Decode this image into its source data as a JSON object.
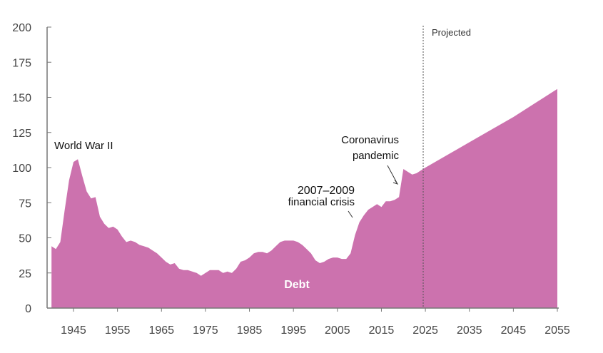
{
  "chart_data": {
    "type": "area",
    "title": "",
    "xlabel": "",
    "ylabel": "",
    "ylim": [
      0,
      200
    ],
    "xlim": [
      1939,
      2055
    ],
    "yticks": [
      0,
      25,
      50,
      75,
      100,
      125,
      150,
      175,
      200
    ],
    "xticks": [
      1945,
      1955,
      1965,
      1975,
      1985,
      1995,
      2005,
      2015,
      2025,
      2035,
      2045,
      2055
    ],
    "grid": false,
    "color": "#cc72ae",
    "series": [
      {
        "name": "Debt",
        "x": [
          1940,
          1941,
          1942,
          1943,
          1944,
          1945,
          1946,
          1947,
          1948,
          1949,
          1950,
          1951,
          1952,
          1953,
          1954,
          1955,
          1956,
          1957,
          1958,
          1959,
          1960,
          1961,
          1962,
          1963,
          1964,
          1965,
          1966,
          1967,
          1968,
          1969,
          1970,
          1971,
          1972,
          1973,
          1974,
          1975,
          1976,
          1977,
          1978,
          1979,
          1980,
          1981,
          1982,
          1983,
          1984,
          1985,
          1986,
          1987,
          1988,
          1989,
          1990,
          1991,
          1992,
          1993,
          1994,
          1995,
          1996,
          1997,
          1998,
          1999,
          2000,
          2001,
          2002,
          2003,
          2004,
          2005,
          2006,
          2007,
          2008,
          2009,
          2010,
          2011,
          2012,
          2013,
          2014,
          2015,
          2016,
          2017,
          2018,
          2019,
          2020,
          2021,
          2022,
          2023,
          2024,
          2025,
          2030,
          2035,
          2040,
          2045,
          2050,
          2055
        ],
        "values": [
          44,
          42,
          47,
          70,
          91,
          104,
          106,
          94,
          83,
          78,
          79,
          65,
          60,
          57,
          58,
          56,
          51,
          47,
          48,
          47,
          45,
          44,
          43,
          41,
          39,
          36,
          33,
          31,
          32,
          28,
          27,
          27,
          26,
          25,
          23,
          25,
          27,
          27,
          27,
          25,
          26,
          25,
          28,
          33,
          34,
          36,
          39,
          40,
          40,
          39,
          41,
          44,
          47,
          48,
          48,
          48,
          47,
          45,
          42,
          39,
          34,
          32,
          33,
          35,
          36,
          36,
          35,
          35,
          39,
          52,
          61,
          66,
          70,
          72,
          74,
          72,
          76,
          76,
          77,
          79,
          99,
          97,
          95,
          96,
          98,
          100,
          109,
          118,
          127,
          136,
          146,
          156
        ]
      }
    ],
    "projected_start": 2024.5,
    "annotations": {
      "projected": "Projected",
      "wwii": "World War II",
      "crisis_1": "2007–2009",
      "crisis_2": "financial crisis",
      "covid_1": "Coronavirus",
      "covid_2": "pandemic",
      "series_label": "Debt"
    }
  }
}
